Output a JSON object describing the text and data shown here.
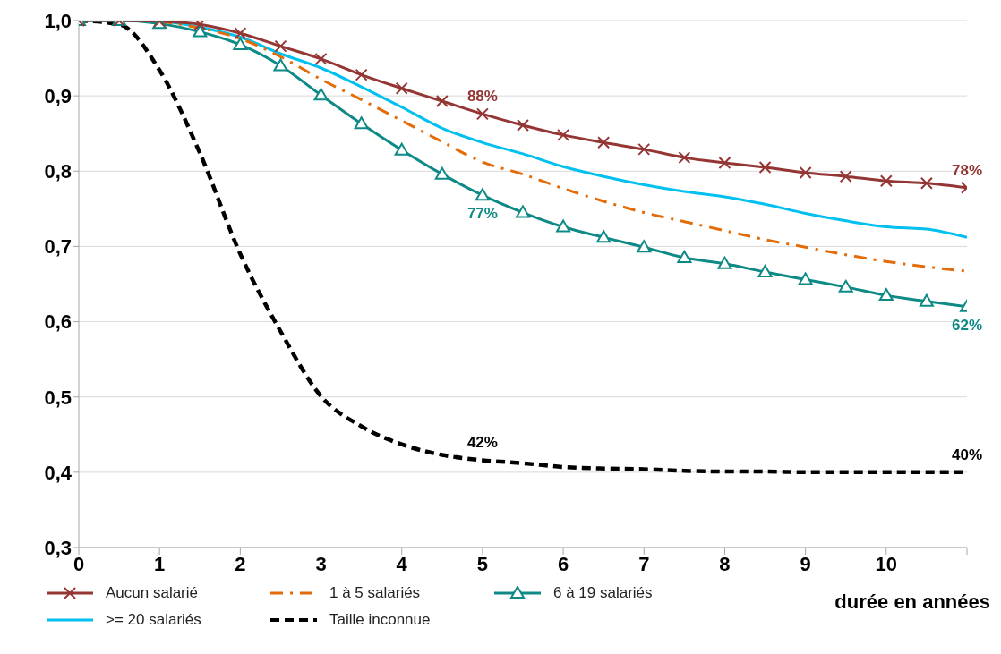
{
  "chart_data": {
    "type": "line",
    "xlabel": "durée en années",
    "x": [
      0,
      0.5,
      1,
      1.5,
      2,
      2.5,
      3,
      3.5,
      4,
      4.5,
      5,
      5.5,
      6,
      6.5,
      7,
      7.5,
      8,
      8.5,
      9,
      9.5,
      10,
      10.5,
      11
    ],
    "series": [
      {
        "name": "Aucun salarié",
        "color": "#943634",
        "marker": "cross",
        "line_style": "solid",
        "values": [
          1.0,
          1.0,
          0.999,
          0.995,
          0.983,
          0.966,
          0.949,
          0.928,
          0.91,
          0.893,
          0.876,
          0.861,
          0.848,
          0.838,
          0.829,
          0.818,
          0.811,
          0.805,
          0.798,
          0.793,
          0.787,
          0.784,
          0.778
        ],
        "value_labels": [
          null,
          null,
          null,
          null,
          null,
          null,
          null,
          null,
          null,
          null,
          "88%",
          null,
          null,
          null,
          null,
          null,
          null,
          null,
          null,
          null,
          null,
          null,
          "78%"
        ]
      },
      {
        "name": "1 à 5 salariés",
        "color": "#e36c09",
        "marker": "none",
        "line_style": "dashdot",
        "values": [
          null,
          null,
          0.999,
          0.99,
          0.976,
          0.952,
          0.922,
          0.895,
          0.867,
          0.839,
          0.812,
          0.796,
          0.777,
          0.76,
          0.745,
          0.733,
          0.721,
          0.709,
          0.699,
          0.689,
          0.68,
          0.673,
          0.667
        ]
      },
      {
        "name": "6 à 19 salariés",
        "color": "#0e8a86",
        "marker": "triangle",
        "line_style": "solid",
        "values": [
          1.0,
          1.0,
          0.996,
          0.985,
          0.968,
          0.94,
          0.901,
          0.863,
          0.828,
          0.796,
          0.768,
          0.745,
          0.726,
          0.712,
          0.699,
          0.685,
          0.677,
          0.666,
          0.656,
          0.646,
          0.635,
          0.627,
          0.62
        ],
        "value_labels": [
          null,
          null,
          null,
          null,
          null,
          null,
          null,
          null,
          null,
          null,
          "77%",
          null,
          null,
          null,
          null,
          null,
          null,
          null,
          null,
          null,
          null,
          null,
          "62%"
        ]
      },
      {
        "name": ">= 20 salariés",
        "color": "#00c0f0",
        "marker": "none",
        "line_style": "solid",
        "values": [
          1.0,
          1.0,
          0.999,
          0.991,
          0.978,
          0.956,
          0.937,
          0.912,
          0.885,
          0.857,
          0.838,
          0.823,
          0.806,
          0.793,
          0.782,
          0.773,
          0.766,
          0.756,
          0.744,
          0.734,
          0.726,
          0.723,
          0.712
        ]
      },
      {
        "name": "Taille inconnue",
        "color": "#000000",
        "marker": "none",
        "line_style": "dashed",
        "values": [
          1.0,
          0.995,
          0.934,
          0.824,
          0.69,
          0.587,
          0.501,
          0.461,
          0.437,
          0.423,
          0.416,
          0.412,
          0.407,
          0.405,
          0.404,
          0.402,
          0.401,
          0.401,
          0.4,
          0.4,
          0.4,
          0.4,
          0.4
        ],
        "value_labels": [
          null,
          null,
          null,
          null,
          null,
          null,
          null,
          null,
          null,
          null,
          "42%",
          null,
          null,
          null,
          null,
          null,
          null,
          null,
          null,
          null,
          null,
          null,
          "40%"
        ]
      }
    ],
    "xlim": [
      0,
      11
    ],
    "xticks": [
      0,
      1,
      2,
      3,
      4,
      5,
      6,
      7,
      8,
      9,
      10,
      {
        "value": 11,
        "label": null
      }
    ],
    "ylim": [
      0.3,
      1.0
    ],
    "yticks": [
      {
        "value": 0.3,
        "label": "0,3"
      },
      {
        "value": 0.4,
        "label": "0,4"
      },
      {
        "value": 0.5,
        "label": "0,5"
      },
      {
        "value": 0.6,
        "label": "0,6"
      },
      {
        "value": 0.7,
        "label": "0,7"
      },
      {
        "value": 0.8,
        "label": "0,8"
      },
      {
        "value": 0.9,
        "label": "0,9"
      },
      {
        "value": 1.0,
        "label": "1,0"
      }
    ],
    "grid": "y",
    "legend": "bottom"
  }
}
